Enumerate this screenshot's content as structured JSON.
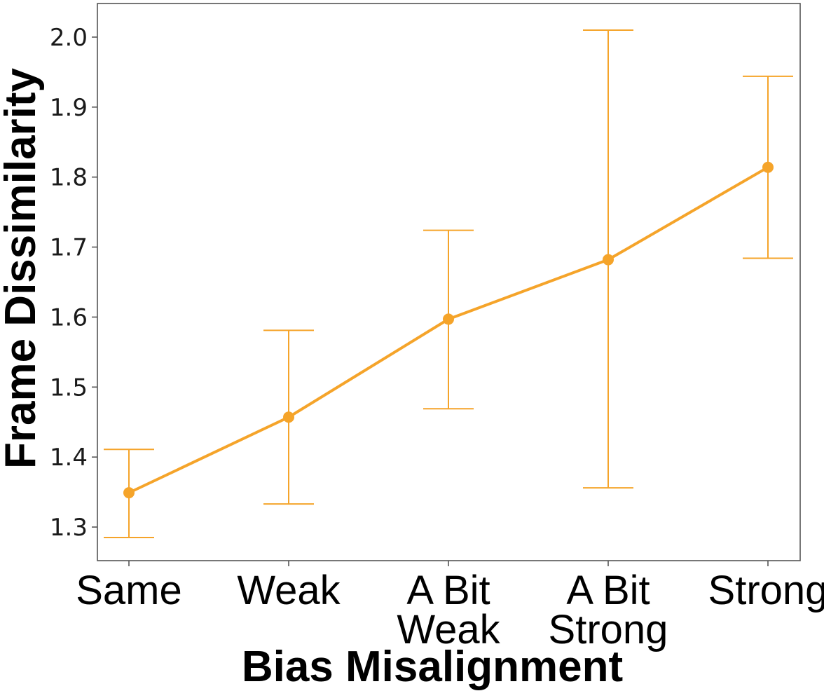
{
  "chart_data": {
    "type": "line",
    "xlabel": "Bias Misalignment",
    "ylabel": "Frame Dissimilarity",
    "categories": [
      [
        "Same"
      ],
      [
        "Weak"
      ],
      [
        "A Bit",
        "Weak"
      ],
      [
        "A Bit",
        "Strong"
      ],
      [
        "Strong"
      ]
    ],
    "series": [
      {
        "values": [
          1.349,
          1.457,
          1.597,
          1.682,
          1.814
        ],
        "error_low": [
          1.285,
          1.333,
          1.469,
          1.356,
          1.684
        ],
        "error_high": [
          1.411,
          1.581,
          1.724,
          2.01,
          1.944
        ],
        "color": "#F5A42A"
      }
    ],
    "ylim": [
      1.252,
      2.048
    ],
    "yticks": [
      "1.3",
      "1.4",
      "1.5",
      "1.6",
      "1.7",
      "1.8",
      "1.9",
      "2.0"
    ],
    "grid": false,
    "markers": true
  }
}
